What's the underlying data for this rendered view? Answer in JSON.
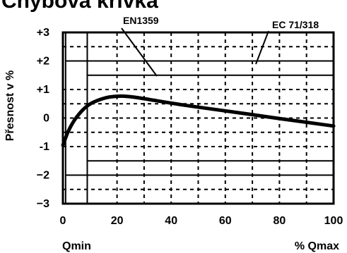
{
  "chart_data": {
    "type": "line",
    "title": "Chybová křivka",
    "ylabel": "Přesnost v  %",
    "xlim": [
      0,
      100
    ],
    "ylim": [
      -3,
      3
    ],
    "x_ticks": [
      "0",
      "20",
      "40",
      "60",
      "80",
      "100"
    ],
    "y_ticks": [
      "+3",
      "+2",
      "+1",
      "0",
      "-1",
      "−2",
      "−3"
    ],
    "x_sublabels": {
      "left": "Qmin",
      "right": "%  Qmax"
    },
    "annotations": [
      "EN1359",
      "EC  71/318"
    ],
    "grid": true,
    "series": [
      {
        "x": [
          0,
          1,
          2,
          4,
          6,
          8,
          10,
          13,
          16,
          19,
          22,
          25,
          30,
          40,
          50,
          60,
          70,
          80,
          90,
          100
        ],
        "y": [
          -0.95,
          -0.7,
          -0.45,
          -0.1,
          0.15,
          0.35,
          0.5,
          0.63,
          0.72,
          0.76,
          0.77,
          0.75,
          0.68,
          0.52,
          0.38,
          0.25,
          0.12,
          -0.02,
          -0.15,
          -0.28
        ]
      }
    ],
    "tolerance_limits": {
      "EN1359": {
        "qmin_percent": 9,
        "low_range": [
          -3,
          3
        ],
        "high_range": [
          -1.5,
          1.5
        ]
      },
      "EC 71/318": {
        "qmin_percent": 1,
        "low_range": [
          -3,
          3
        ],
        "high_range": [
          -2,
          2
        ]
      }
    }
  }
}
